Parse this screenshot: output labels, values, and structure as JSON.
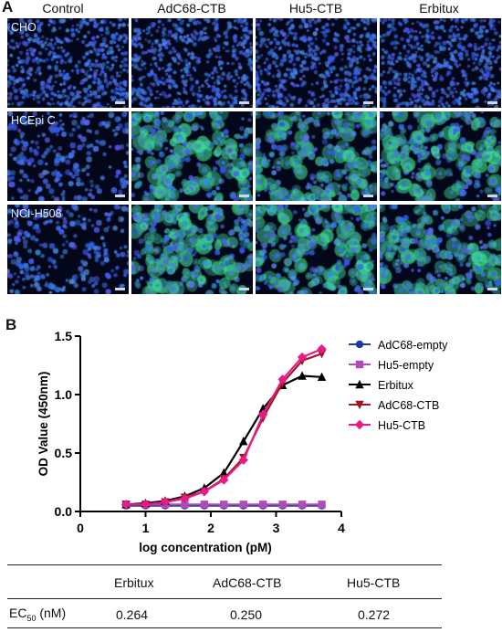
{
  "panel_a": {
    "letter": "A",
    "columns": [
      "Control",
      "AdC68-CTB",
      "Hu5-CTB",
      "Erbitux"
    ],
    "rows": [
      "CHO",
      "HCEpi C",
      "NCI-H508"
    ]
  },
  "panel_b": {
    "letter": "B"
  },
  "chart_data": {
    "type": "line",
    "xlabel": "log concentration (pM)",
    "ylabel": "OD Value (450nm)",
    "xlim": [
      0,
      4
    ],
    "ylim": [
      0,
      1.5
    ],
    "xticks": [
      0,
      1,
      2,
      3,
      4
    ],
    "yticks": [
      0.0,
      0.5,
      1.0,
      1.5
    ],
    "x": [
      0.7,
      1.0,
      1.3,
      1.6,
      1.9,
      2.2,
      2.5,
      2.8,
      3.1,
      3.4,
      3.7
    ],
    "series": [
      {
        "name": "AdC68-empty",
        "marker": "circle",
        "color": "#1f3c9c",
        "values": [
          0.05,
          0.05,
          0.05,
          0.05,
          0.05,
          0.05,
          0.05,
          0.05,
          0.05,
          0.05,
          0.05
        ]
      },
      {
        "name": "Hu5-empty",
        "marker": "square",
        "color": "#b04bb8",
        "values": [
          0.06,
          0.06,
          0.06,
          0.06,
          0.06,
          0.06,
          0.06,
          0.06,
          0.06,
          0.06,
          0.06
        ]
      },
      {
        "name": "Erbitux",
        "marker": "triangle",
        "color": "#000000",
        "values": [
          0.06,
          0.07,
          0.09,
          0.13,
          0.2,
          0.33,
          0.6,
          0.88,
          1.08,
          1.16,
          1.15
        ]
      },
      {
        "name": "AdC68-CTB",
        "marker": "triangle-down",
        "color": "#a0191e",
        "values": [
          0.06,
          0.06,
          0.08,
          0.12,
          0.17,
          0.28,
          0.46,
          0.8,
          1.1,
          1.29,
          1.35
        ]
      },
      {
        "name": "Hu5-CTB",
        "marker": "diamond",
        "color": "#e8198b",
        "values": [
          0.06,
          0.06,
          0.08,
          0.11,
          0.17,
          0.27,
          0.44,
          0.83,
          1.13,
          1.32,
          1.39
        ]
      }
    ],
    "legend_position": "right"
  },
  "table": {
    "headers": [
      "Erbitux",
      "AdC68-CTB",
      "Hu5-CTB"
    ],
    "row_label_main": "EC",
    "row_label_sub": "50",
    "row_label_unit": " (nM)",
    "values": [
      "0.264",
      "0.250",
      "0.272"
    ]
  }
}
